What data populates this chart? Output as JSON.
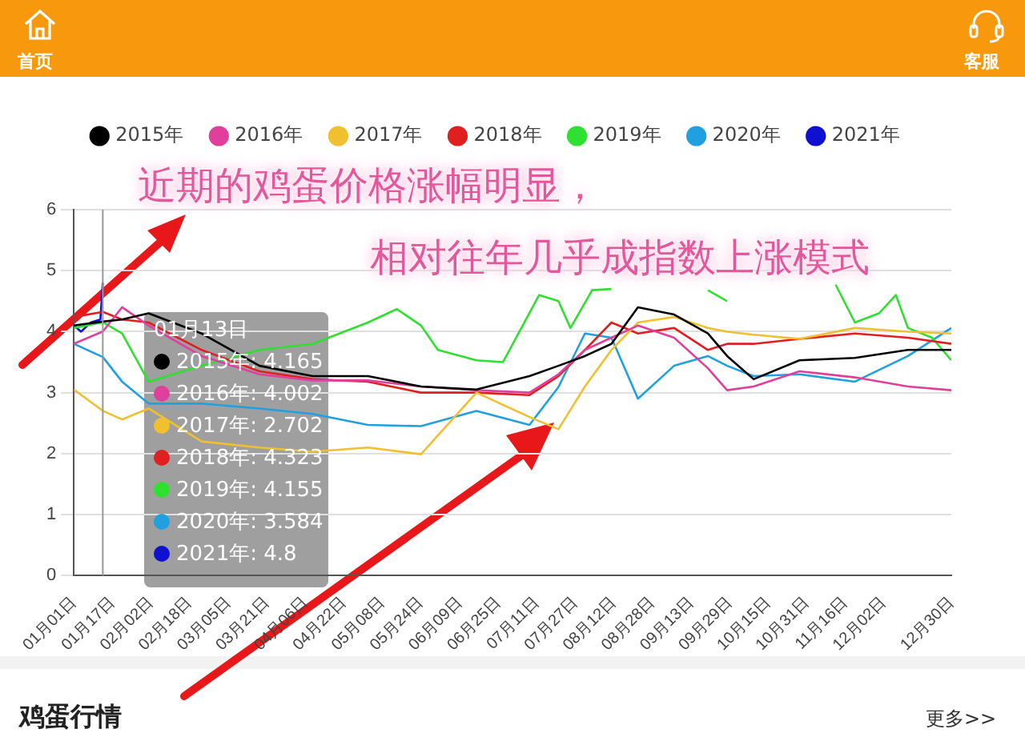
{
  "chart_data": {
    "type": "line",
    "marker": "none",
    "line_style": "solid",
    "grid": "y",
    "legend": "top",
    "x": [
      "--01-01",
      "--01-13",
      "--01-21",
      "--02-01",
      "--02-23",
      "--03-18",
      "--04-09",
      "--05-02",
      "--05-24",
      "--06-16",
      "--07-08",
      "--07-20",
      "--07-31",
      "--08-11",
      "--08-22",
      "--09-06",
      "--09-20",
      "--09-28",
      "--10-09",
      "--10-28",
      "--11-20",
      "--12-12",
      "--12-30"
    ],
    "xlim": [
      "--01-01",
      "--12-30"
    ],
    "xticks": [
      {
        "value": "--01-01",
        "label": "01月01日"
      },
      {
        "value": "--01-17",
        "label": "01月17日"
      },
      {
        "value": "--02-02",
        "label": "02月02日"
      },
      {
        "value": "--02-18",
        "label": "02月18日"
      },
      {
        "value": "--03-05",
        "label": "03月05日"
      },
      {
        "value": "--03-21",
        "label": "03月21日"
      },
      {
        "value": "--04-06",
        "label": "04月06日"
      },
      {
        "value": "--04-22",
        "label": "04月22日"
      },
      {
        "value": "--05-08",
        "label": "05月08日"
      },
      {
        "value": "--05-24",
        "label": "05月24日"
      },
      {
        "value": "--06-09",
        "label": "06月09日"
      },
      {
        "value": "--06-25",
        "label": "06月25日"
      },
      {
        "value": "--07-11",
        "label": "07月11日"
      },
      {
        "value": "--07-27",
        "label": "07月27日"
      },
      {
        "value": "--08-12",
        "label": "08月12日"
      },
      {
        "value": "--08-28",
        "label": "08月28日"
      },
      {
        "value": "--09-13",
        "label": "09月13日"
      },
      {
        "value": "--09-29",
        "label": "09月29日"
      },
      {
        "value": "--10-15",
        "label": "10月15日"
      },
      {
        "value": "--10-31",
        "label": "10月31日"
      },
      {
        "value": "--11-16",
        "label": "11月16日"
      },
      {
        "value": "--12-02",
        "label": "12月02日"
      },
      {
        "value": "--12-30",
        "label": "12月30日"
      }
    ],
    "ylim": [
      0,
      6
    ],
    "yticks": [
      0,
      1,
      2,
      3,
      4,
      5,
      6
    ],
    "ref_lines": [
      {
        "axis": "x",
        "value": "--01-13",
        "color": "#999999"
      }
    ],
    "series": [
      {
        "name": "2015年",
        "color": "#000000",
        "values": [
          4.1,
          4.165,
          4.2,
          4.3,
          3.97,
          3.44,
          3.27,
          3.27,
          3.1,
          3.05,
          3.27,
          3.44,
          3.6,
          3.8,
          4.4,
          4.28,
          3.97,
          3.6,
          3.22,
          3.53,
          3.57,
          3.7,
          3.7
        ]
      },
      {
        "name": "2016年",
        "color": "#e0409c",
        "values": [
          3.8,
          4.002,
          4.4,
          4.1,
          3.6,
          3.3,
          3.2,
          3.2,
          3.1,
          3.04,
          3.0,
          3.3,
          3.7,
          3.9,
          4.1,
          3.9,
          3.4,
          3.04,
          3.1,
          3.35,
          3.25,
          3.1,
          3.04
        ]
      },
      {
        "name": "2017年",
        "color": "#f0c030",
        "values": [
          3.05,
          2.702,
          2.56,
          2.74,
          2.2,
          2.1,
          2.03,
          2.1,
          1.99,
          3.0,
          2.6,
          2.4,
          3.1,
          3.7,
          4.15,
          4.24,
          4.06,
          4.0,
          3.95,
          3.88,
          4.06,
          4.0,
          3.97
        ]
      },
      {
        "name": "2018年",
        "color": "#e02020",
        "values": [
          4.24,
          4.323,
          4.2,
          4.15,
          3.7,
          3.35,
          3.22,
          3.18,
          3.0,
          3.0,
          2.96,
          3.27,
          3.7,
          4.15,
          3.97,
          4.06,
          3.7,
          3.8,
          3.8,
          3.88,
          3.97,
          3.9,
          3.8
        ]
      },
      {
        "name": "2019年",
        "color": "#30e030",
        "x": [
          "--01-01",
          "--01-13",
          "--01-21",
          "--02-01",
          "--02-23",
          "--03-18",
          "--04-09",
          "--05-02",
          "--05-14",
          "--05-24",
          "--05-31",
          "--06-16",
          "--06-27",
          "--07-12",
          "--07-20",
          "--07-25",
          "--08-03",
          "--08-11",
          "--08-18",
          "--08-29",
          "--09-20",
          "--09-28",
          "--10-06",
          "--10-18",
          "--11-12",
          "--11-20",
          "--11-30",
          "--12-07",
          "--12-12",
          "--12-22",
          "--12-30"
        ],
        "values": [
          4.06,
          4.155,
          3.97,
          3.18,
          3.44,
          3.7,
          3.8,
          4.15,
          4.37,
          4.1,
          3.7,
          3.53,
          3.5,
          4.6,
          4.5,
          4.06,
          4.68,
          4.7,
          null,
          null,
          4.68,
          4.5,
          null,
          null,
          4.77,
          4.15,
          4.3,
          4.6,
          4.06,
          3.9,
          3.53
        ]
      },
      {
        "name": "2020年",
        "color": "#20a0e0",
        "values": [
          3.8,
          3.584,
          3.18,
          2.82,
          2.82,
          2.74,
          2.65,
          2.47,
          2.45,
          2.7,
          2.47,
          3.09,
          3.97,
          3.9,
          2.9,
          3.44,
          3.6,
          3.44,
          3.27,
          3.3,
          3.18,
          3.6,
          4.06
        ]
      },
      {
        "name": "2021年",
        "color": "#1010d0",
        "x": [
          "--01-01",
          "--01-04",
          "--01-08",
          "--01-12",
          "--01-13"
        ],
        "values": [
          4.1,
          4.0,
          4.15,
          4.2,
          4.8
        ]
      }
    ],
    "annotations": [
      "首页",
      "客服",
      "近期的鸡蛋价格涨幅明显，",
      "相对往年几乎成指数上涨模式",
      "01月13日",
      "2015年: 4.165",
      "2016年: 4.002",
      "2017年: 2.702",
      "2018年: 4.323",
      "2019年: 4.155",
      "2020年: 3.584",
      "2021年: 4.8",
      "鸡蛋行情",
      "更多>>"
    ]
  }
}
